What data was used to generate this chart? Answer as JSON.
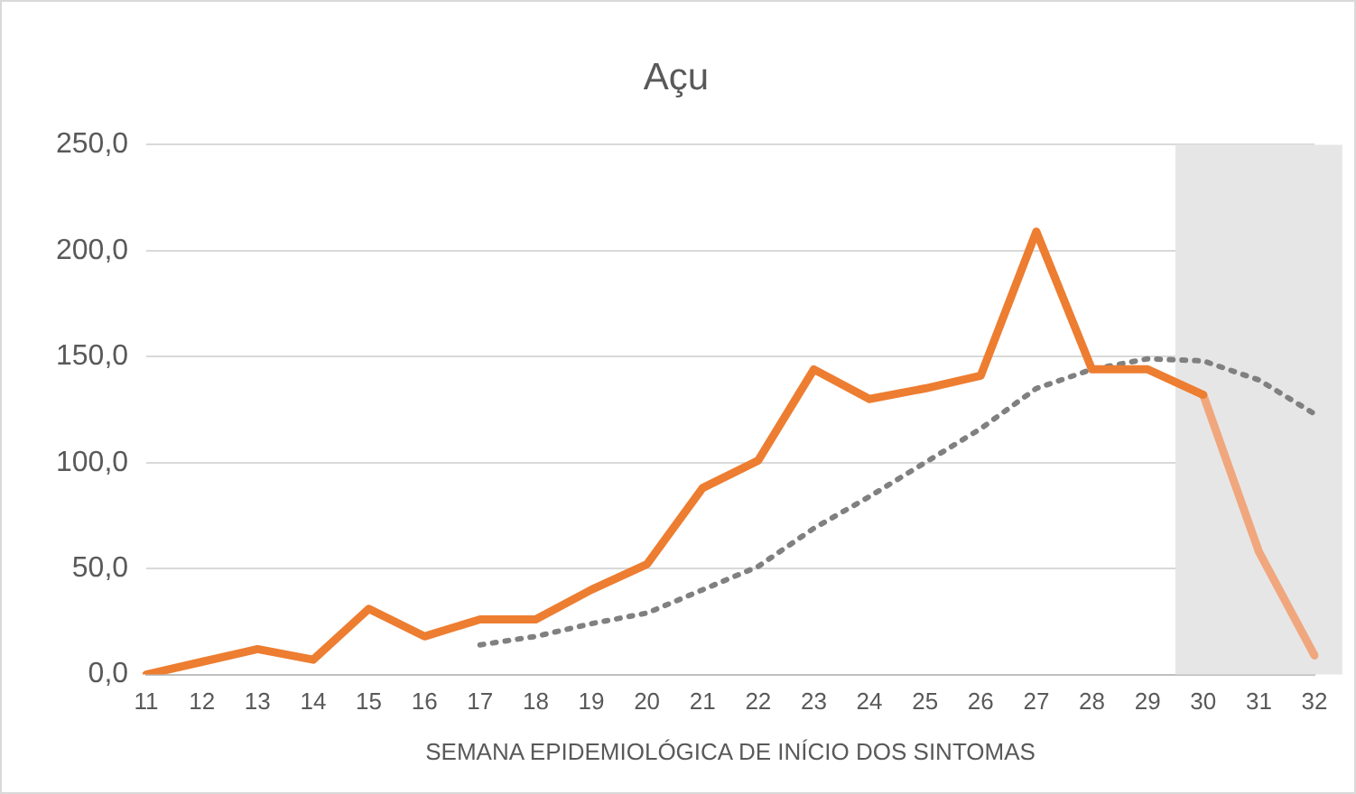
{
  "chart_data": {
    "type": "line",
    "title": "Açu",
    "xlabel": "SEMANA EPIDEMIOLÓGICA DE INÍCIO DOS SINTOMAS",
    "categories": [
      "11",
      "12",
      "13",
      "14",
      "15",
      "16",
      "17",
      "18",
      "19",
      "20",
      "21",
      "22",
      "23",
      "24",
      "25",
      "26",
      "27",
      "28",
      "29",
      "30",
      "31",
      "32"
    ],
    "series": [
      {
        "color": "#ed7d31",
        "values": [
          0,
          6,
          12,
          7,
          31,
          18,
          26,
          26,
          40,
          52,
          88,
          101,
          144,
          130,
          135,
          141,
          209,
          144,
          144,
          132,
          null,
          null
        ]
      },
      {
        "color": "#f0a77e",
        "values": [
          null,
          null,
          null,
          null,
          null,
          null,
          null,
          null,
          null,
          null,
          null,
          null,
          null,
          null,
          null,
          null,
          null,
          null,
          null,
          132,
          58,
          9
        ]
      },
      {
        "color": "#808080",
        "line_style": "dotted",
        "values": [
          null,
          null,
          null,
          null,
          null,
          null,
          14,
          18,
          24,
          29,
          40,
          51,
          69,
          84,
          100,
          116,
          135,
          144,
          149,
          148,
          139,
          123
        ]
      }
    ],
    "ylim": [
      0,
      250
    ],
    "yticks": [
      {
        "value": 0,
        "label": "0,0"
      },
      {
        "value": 50,
        "label": "50,0"
      },
      {
        "value": 100,
        "label": "100,0"
      },
      {
        "value": 150,
        "label": "150,0"
      },
      {
        "value": 200,
        "label": "200,0"
      },
      {
        "value": 250,
        "label": "250,0"
      }
    ],
    "grid": "y",
    "marker": "none",
    "bands": [
      {
        "axis": "x",
        "from": "30",
        "to": "32",
        "color": "#e7e6e6"
      }
    ]
  }
}
